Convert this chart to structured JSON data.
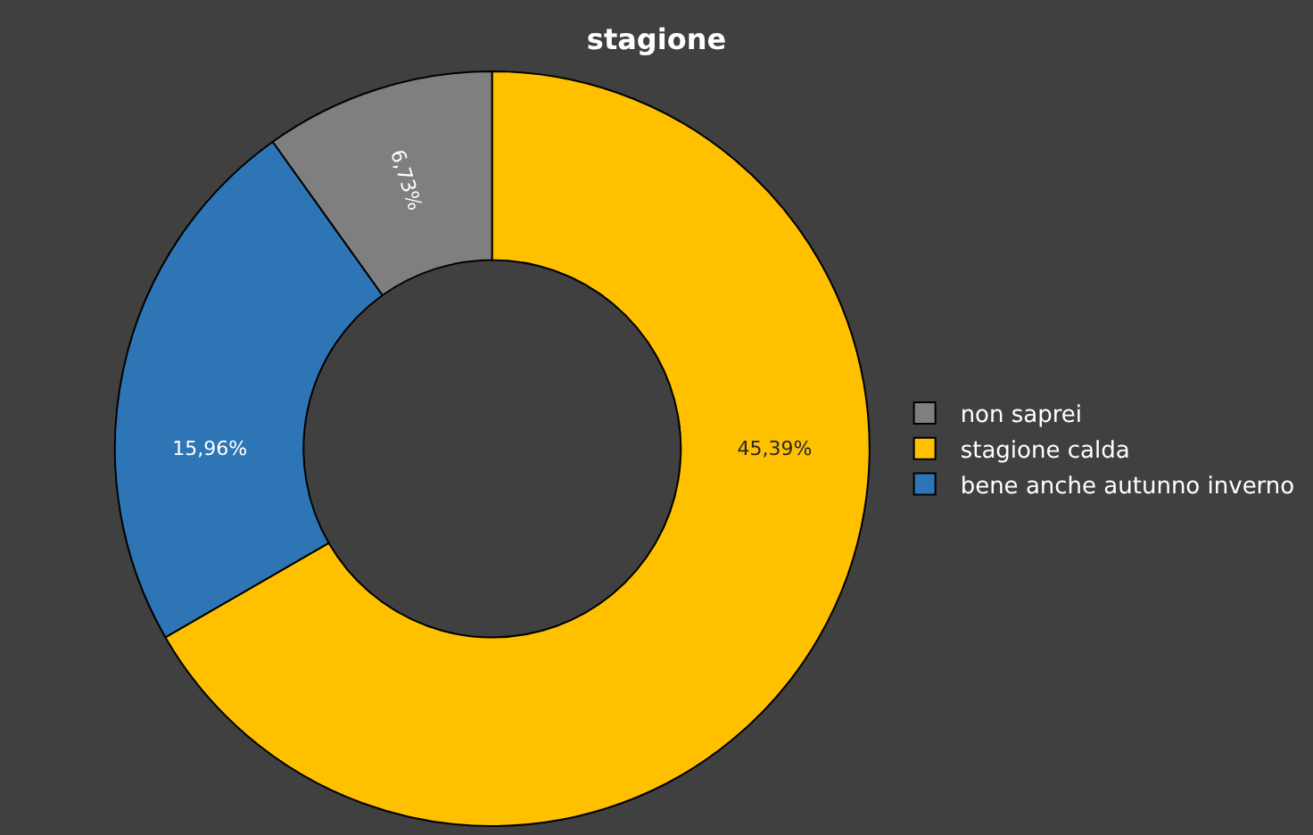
{
  "chart_data": {
    "type": "donut",
    "title": "stagione",
    "categories": [
      "non saprei",
      "stagione calda",
      "bene anche autunno inverno"
    ],
    "values": [
      6.73,
      45.39,
      15.96
    ],
    "value_labels": [
      "6,73%",
      "45,39%",
      "15,96%"
    ],
    "colors": [
      "#7f7f7f",
      "#ffc000",
      "#2e75b6"
    ],
    "legend": "right"
  }
}
